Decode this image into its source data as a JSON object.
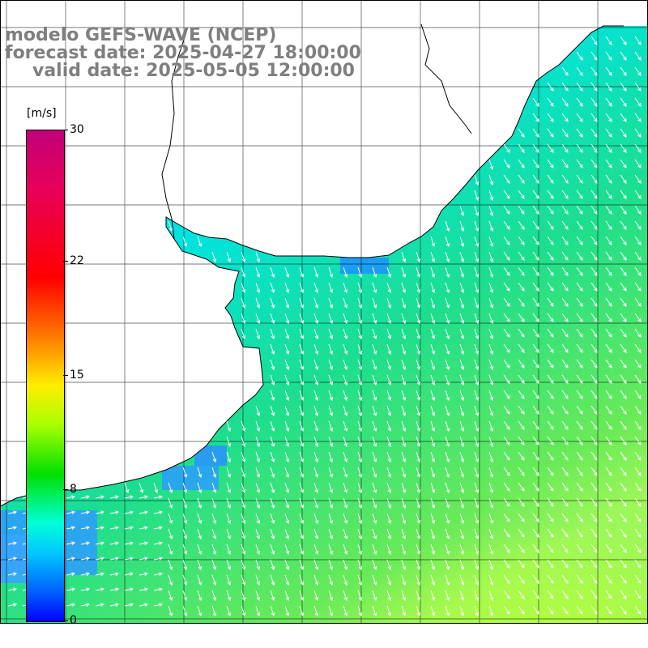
{
  "titles": {
    "line1": "modelo GEFS-WAVE (NCEP)",
    "line2": "forecast date: 2025-04-27 18:00:00",
    "line3": "valid date: 2025-05-05 12:00:00"
  },
  "colorbar": {
    "unit": "[m/s]",
    "ticks": [
      {
        "label": "30",
        "value": 30
      },
      {
        "label": "22",
        "value": 22
      },
      {
        "label": "15",
        "value": 15
      },
      {
        "label": "8",
        "value": 8
      },
      {
        "label": "0",
        "value": 0
      }
    ],
    "colors": [
      "#c0007a",
      "#ff0000",
      "#ff7a00",
      "#ffee00",
      "#00e000",
      "#00ffd8",
      "#0000ff"
    ]
  },
  "map": {
    "land_color": "#ffffff",
    "coast_color": "#000000",
    "grid_color": "#000000",
    "arrow_color": "#ffffff",
    "wind_direction": "from north-northwest, flowing south",
    "nearshore_color": "#00c8ff",
    "offshore_color": "#22e27a",
    "southeast_color": "#b8ff3a"
  }
}
